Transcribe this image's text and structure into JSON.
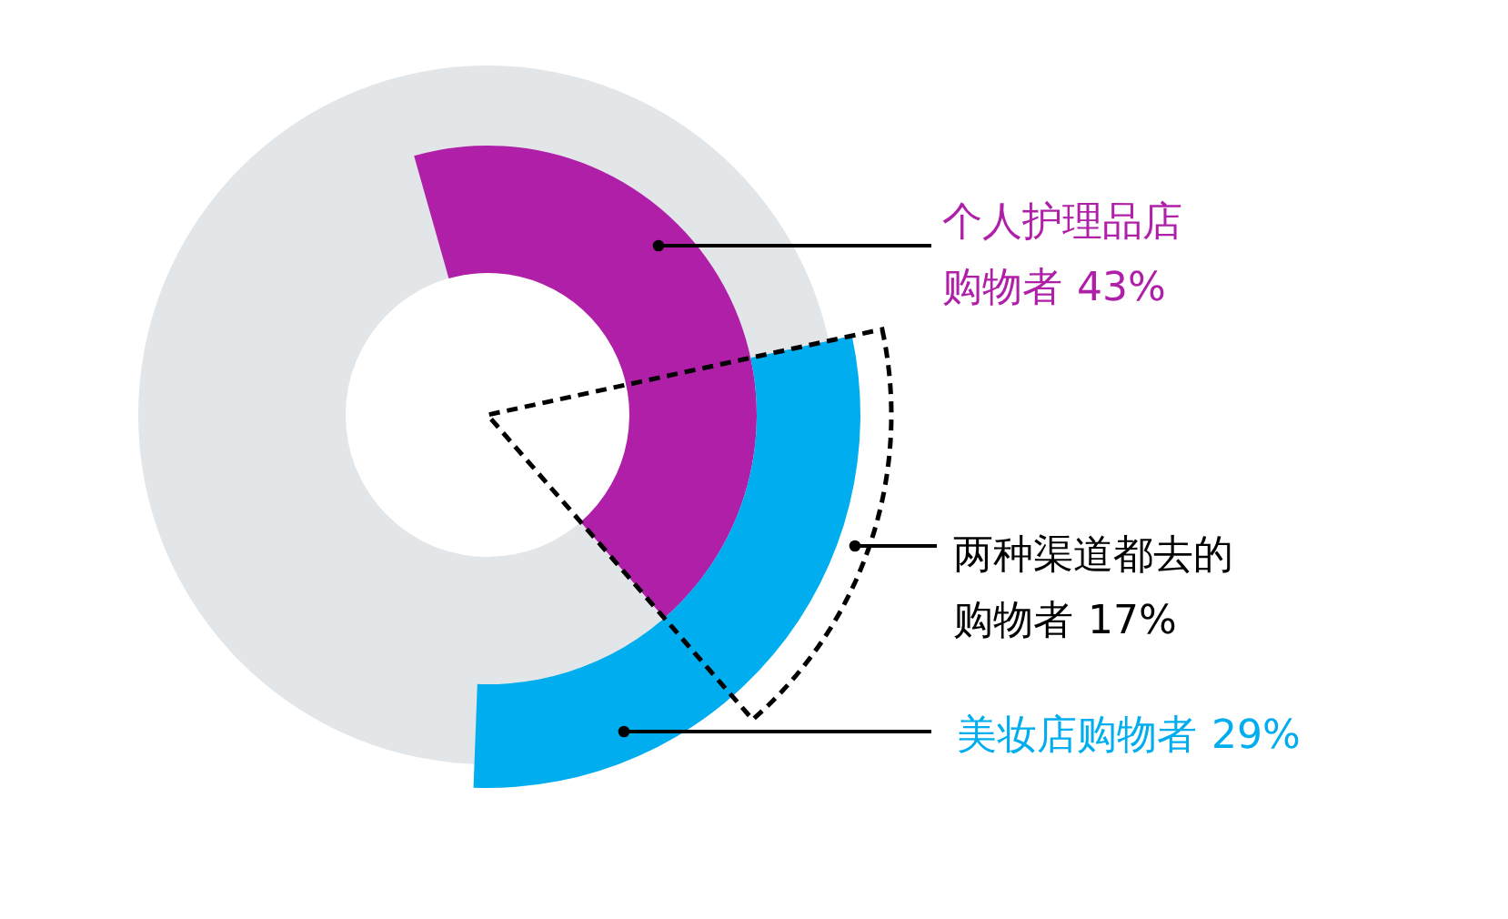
{
  "chart_data": {
    "type": "other",
    "categories": [
      "个人护理品店购物者",
      "美妆店购物者",
      "两种渠道都去的购物者"
    ],
    "values": [
      43,
      29,
      17
    ],
    "value_labels": [
      "43%",
      "29%",
      "17%"
    ],
    "colors": [
      "#b01fa8",
      "#00aeef",
      "#000000"
    ]
  }
}
